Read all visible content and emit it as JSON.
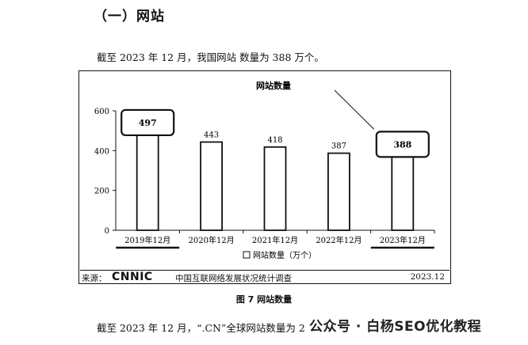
{
  "heading": "（一）网站",
  "intro": "截至 2023 年 12 月，我国网站 数量为 388 万个。",
  "chart_data": {
    "type": "bar",
    "title": "网站数量",
    "categories": [
      "2019年12月",
      "2020年12月",
      "2021年12月",
      "2022年12月",
      "2023年12月"
    ],
    "series": [
      {
        "name": "网站数量（万个）",
        "values": [
          497,
          443,
          418,
          387,
          388
        ]
      }
    ],
    "ylim": [
      0,
      600
    ],
    "yticks": [
      0,
      200,
      400,
      600
    ],
    "grid": false,
    "legend": "bottom",
    "highlighted_categories": [
      "2019年12月",
      "2023年12月"
    ],
    "colors": {
      "bar_fill": "#ffffff",
      "bar_stroke": "#111111"
    }
  },
  "source": {
    "label": "来源：",
    "logo": "CNNIC",
    "org": "中国互联网络发展状况统计调查",
    "date": "2023.12"
  },
  "caption": "图 7  网站数量",
  "bottom_text": "截至 2023 年 12 月，“.CN”全球网站数量为 2",
  "watermark": "公众号 · 白杨SEO优化教程"
}
